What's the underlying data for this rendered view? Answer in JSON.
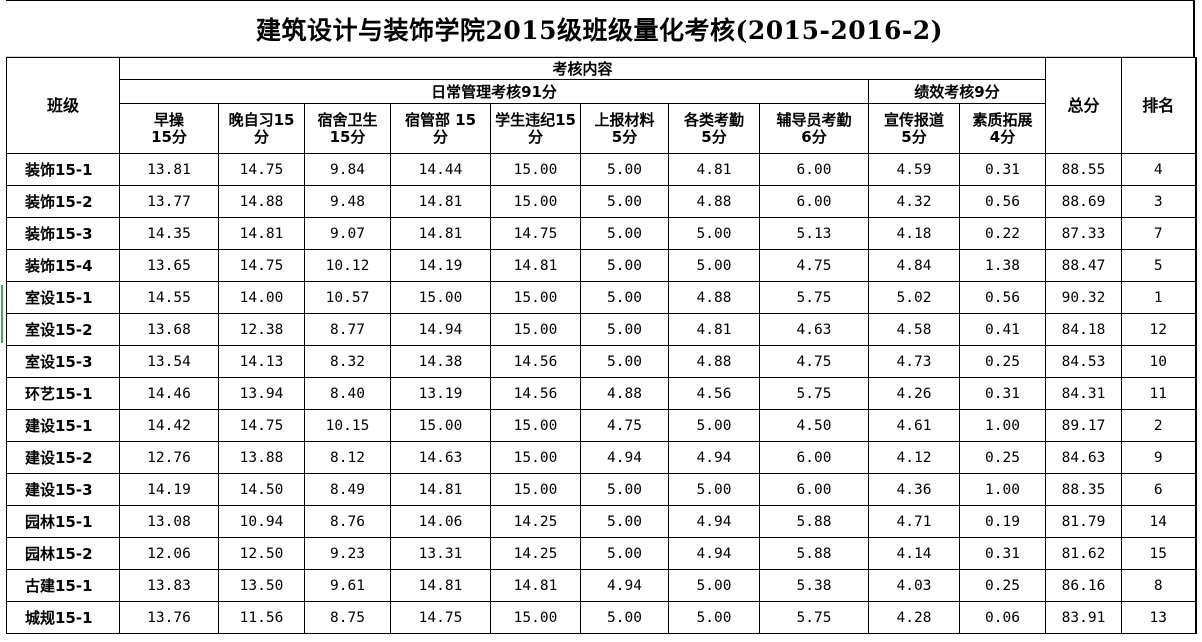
{
  "title": "建筑设计与装饰学院2015级班级量化考核(2015-2016-2)",
  "headers": {
    "class": "班级",
    "assessment": "考核内容",
    "daily_group": "日常管理考核91分",
    "performance_group": "绩效考核9分",
    "total": "总分",
    "rank": "排名",
    "columns": [
      {
        "line1": "早操",
        "line2": "15分"
      },
      {
        "line1": "晚自习15",
        "line2": "分"
      },
      {
        "line1": "宿舍卫生",
        "line2": "15分"
      },
      {
        "line1": "宿管部  15",
        "line2": "分"
      },
      {
        "line1": "学生违纪15",
        "line2": "分"
      },
      {
        "line1": "上报材料",
        "line2": "5分"
      },
      {
        "line1": "各类考勤",
        "line2": "5分"
      },
      {
        "line1": "辅导员考勤",
        "line2": "6分"
      },
      {
        "line1": "宣传报道",
        "line2": "5分"
      },
      {
        "line1": "素质拓展",
        "line2": "4分"
      }
    ]
  },
  "rows": [
    {
      "cls": "装饰15-1",
      "v": [
        "13.81",
        "14.75",
        "9.84",
        "14.44",
        "15.00",
        "5.00",
        "4.81",
        "6.00",
        "4.59",
        "0.31"
      ],
      "total": "88.55",
      "rank": "4"
    },
    {
      "cls": "装饰15-2",
      "v": [
        "13.77",
        "14.88",
        "9.48",
        "14.81",
        "15.00",
        "5.00",
        "4.88",
        "6.00",
        "4.32",
        "0.56"
      ],
      "total": "88.69",
      "rank": "3"
    },
    {
      "cls": "装饰15-3",
      "v": [
        "14.35",
        "14.81",
        "9.07",
        "14.81",
        "14.75",
        "5.00",
        "5.00",
        "5.13",
        "4.18",
        "0.22"
      ],
      "total": "87.33",
      "rank": "7"
    },
    {
      "cls": "装饰15-4",
      "v": [
        "13.65",
        "14.75",
        "10.12",
        "14.19",
        "14.81",
        "5.00",
        "5.00",
        "4.75",
        "4.84",
        "1.38"
      ],
      "total": "88.47",
      "rank": "5"
    },
    {
      "cls": "室设15-1",
      "v": [
        "14.55",
        "14.00",
        "10.57",
        "15.00",
        "15.00",
        "5.00",
        "4.88",
        "5.75",
        "5.02",
        "0.56"
      ],
      "total": "90.32",
      "rank": "1"
    },
    {
      "cls": "室设15-2",
      "v": [
        "13.68",
        "12.38",
        "8.77",
        "14.94",
        "15.00",
        "5.00",
        "4.81",
        "4.63",
        "4.58",
        "0.41"
      ],
      "total": "84.18",
      "rank": "12"
    },
    {
      "cls": "室设15-3",
      "v": [
        "13.54",
        "14.13",
        "8.32",
        "14.38",
        "14.56",
        "5.00",
        "4.88",
        "4.75",
        "4.73",
        "0.25"
      ],
      "total": "84.53",
      "rank": "10"
    },
    {
      "cls": "环艺15-1",
      "v": [
        "14.46",
        "13.94",
        "8.40",
        "13.19",
        "14.56",
        "4.88",
        "4.56",
        "5.75",
        "4.26",
        "0.31"
      ],
      "total": "84.31",
      "rank": "11"
    },
    {
      "cls": "建设15-1",
      "v": [
        "14.42",
        "14.75",
        "10.15",
        "15.00",
        "15.00",
        "4.75",
        "5.00",
        "4.50",
        "4.61",
        "1.00"
      ],
      "total": "89.17",
      "rank": "2"
    },
    {
      "cls": "建设15-2",
      "v": [
        "12.76",
        "13.88",
        "8.12",
        "14.63",
        "15.00",
        "4.94",
        "4.94",
        "6.00",
        "4.12",
        "0.25"
      ],
      "total": "84.63",
      "rank": "9"
    },
    {
      "cls": "建设15-3",
      "v": [
        "14.19",
        "14.50",
        "8.49",
        "14.81",
        "15.00",
        "5.00",
        "5.00",
        "6.00",
        "4.36",
        "1.00"
      ],
      "total": "88.35",
      "rank": "6"
    },
    {
      "cls": "园林15-1",
      "v": [
        "13.08",
        "10.94",
        "8.76",
        "14.06",
        "14.25",
        "5.00",
        "4.94",
        "5.88",
        "4.71",
        "0.19"
      ],
      "total": "81.79",
      "rank": "14"
    },
    {
      "cls": "园林15-2",
      "v": [
        "12.06",
        "12.50",
        "9.23",
        "13.31",
        "14.25",
        "5.00",
        "4.94",
        "5.88",
        "4.14",
        "0.31"
      ],
      "total": "81.62",
      "rank": "15"
    },
    {
      "cls": "古建15-1",
      "v": [
        "13.83",
        "13.50",
        "9.61",
        "14.81",
        "14.81",
        "4.94",
        "5.00",
        "5.38",
        "4.03",
        "0.25"
      ],
      "total": "86.16",
      "rank": "8"
    },
    {
      "cls": "城规15-1",
      "v": [
        "13.76",
        "11.56",
        "8.75",
        "14.75",
        "15.00",
        "5.00",
        "5.00",
        "5.75",
        "4.28",
        "0.06"
      ],
      "total": "83.91",
      "rank": "13"
    }
  ]
}
